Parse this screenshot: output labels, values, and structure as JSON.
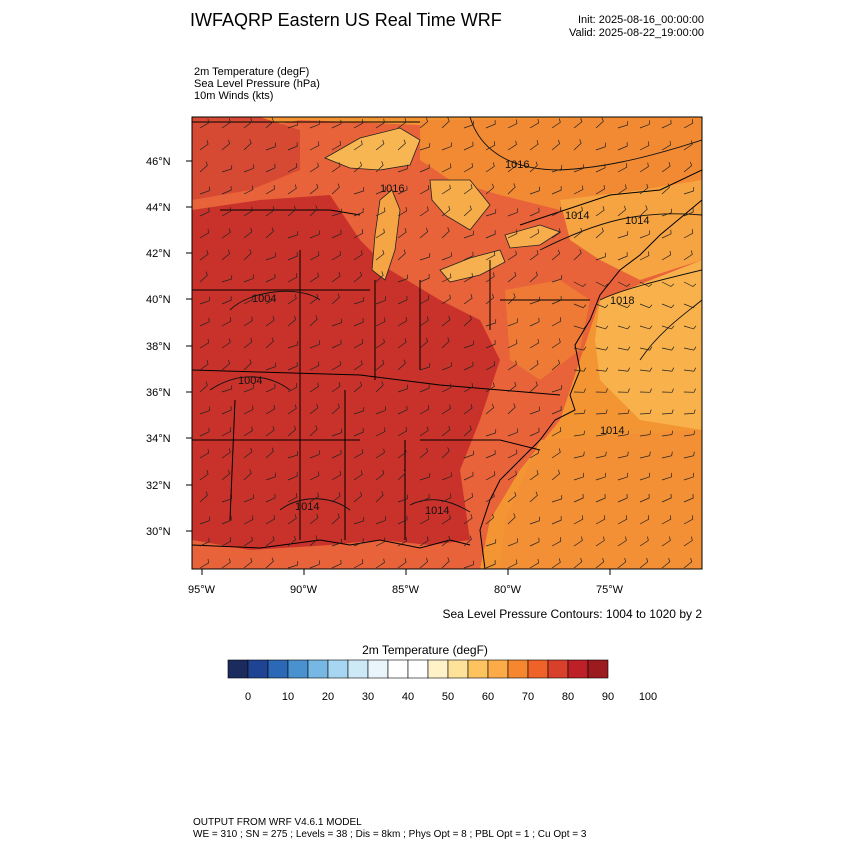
{
  "header": {
    "title": "IWFAQRP Eastern US Real Time WRF",
    "init": "Init: 2025-08-16_00:00:00",
    "valid": "Valid: 2025-08-22_19:00:00"
  },
  "fields": [
    "2m Temperature   (degF)",
    "Sea Level Pressure   (hPa)",
    "10m Winds   (kts)"
  ],
  "map": {
    "lat_ticks": [
      "46°N",
      "44°N",
      "42°N",
      "40°N",
      "38°N",
      "36°N",
      "34°N",
      "32°N",
      "30°N"
    ],
    "lon_ticks": [
      "95°W",
      "90°W",
      "85°W",
      "80°W",
      "75°W"
    ],
    "pressure_labels": [
      "1016",
      "1016",
      "1014",
      "1014",
      "1018",
      "1004",
      "1004",
      "1014",
      "1014",
      "1014"
    ],
    "contour_note": "Sea Level Pressure Contours: 1004 to 1020 by 2",
    "colors": {
      "hot": "#c8322a",
      "warm": "#e2553a",
      "mild": "#f08c2c",
      "cool": "#f7b24a",
      "land_lines": "#000000"
    }
  },
  "colorbar": {
    "title": "2m Temperature  (degF)",
    "colors": [
      "#1b2b5e",
      "#1f4494",
      "#2b68b5",
      "#4a92cf",
      "#77b7e4",
      "#a7d6f3",
      "#cde8f7",
      "#e9f5fb",
      "#ffffff",
      "#ffffff",
      "#fff1c8",
      "#fee29a",
      "#fdc35e",
      "#fcab48",
      "#f6872e",
      "#ef6228",
      "#d9402c",
      "#be2028",
      "#9c1b1f"
    ],
    "labels": [
      "0",
      "10",
      "20",
      "30",
      "40",
      "50",
      "60",
      "70",
      "80",
      "90",
      "100"
    ]
  },
  "footer": {
    "line1": "OUTPUT FROM WRF V4.6.1 MODEL",
    "line2": "WE = 310 ; SN = 275 ; Levels = 38 ; Dis = 8km ; Phys Opt = 8 ; PBL Opt = 1 ; Cu Opt = 3"
  }
}
